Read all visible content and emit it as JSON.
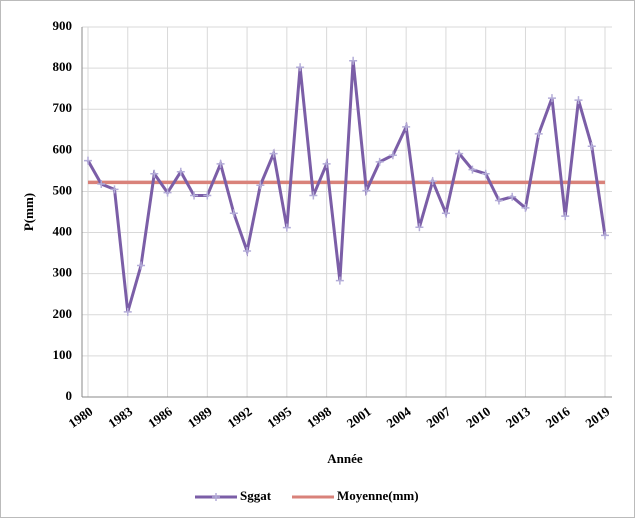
{
  "chart_data": {
    "type": "line",
    "x": [
      1980,
      1981,
      1982,
      1983,
      1984,
      1985,
      1986,
      1987,
      1988,
      1989,
      1990,
      1991,
      1992,
      1993,
      1994,
      1995,
      1996,
      1997,
      1998,
      1999,
      2000,
      2001,
      2002,
      2003,
      2004,
      2005,
      2006,
      2007,
      2008,
      2009,
      2010,
      2011,
      2012,
      2013,
      2014,
      2015,
      2016,
      2017,
      2018,
      2019
    ],
    "series": [
      {
        "name": "Sggat",
        "color": "#7b5ea7",
        "values": [
          575,
          518,
          505,
          207,
          320,
          543,
          497,
          548,
          490,
          490,
          567,
          447,
          355,
          515,
          592,
          412,
          802,
          490,
          567,
          283,
          818,
          502,
          572,
          588,
          657,
          413,
          525,
          447,
          592,
          553,
          543,
          478,
          487,
          460,
          640,
          727,
          440,
          722,
          610,
          393
        ]
      },
      {
        "name": "Moyenne(mm)",
        "color": "#d9827a",
        "values": [
          522,
          522,
          522,
          522,
          522,
          522,
          522,
          522,
          522,
          522,
          522,
          522,
          522,
          522,
          522,
          522,
          522,
          522,
          522,
          522,
          522,
          522,
          522,
          522,
          522,
          522,
          522,
          522,
          522,
          522,
          522,
          522,
          522,
          522,
          522,
          522,
          522,
          522,
          522,
          522
        ]
      }
    ],
    "xlabel": "Année",
    "ylabel": "P(mm)",
    "xlim": [
      1980,
      2019
    ],
    "xticks": [
      1980,
      1983,
      1986,
      1989,
      1992,
      1995,
      1998,
      2001,
      2004,
      2007,
      2010,
      2013,
      2016,
      2019
    ],
    "ylim": [
      0,
      900
    ],
    "yticks": [
      0,
      100,
      200,
      300,
      400,
      500,
      600,
      700,
      800,
      900
    ],
    "grid": true,
    "legend": "bottom"
  }
}
